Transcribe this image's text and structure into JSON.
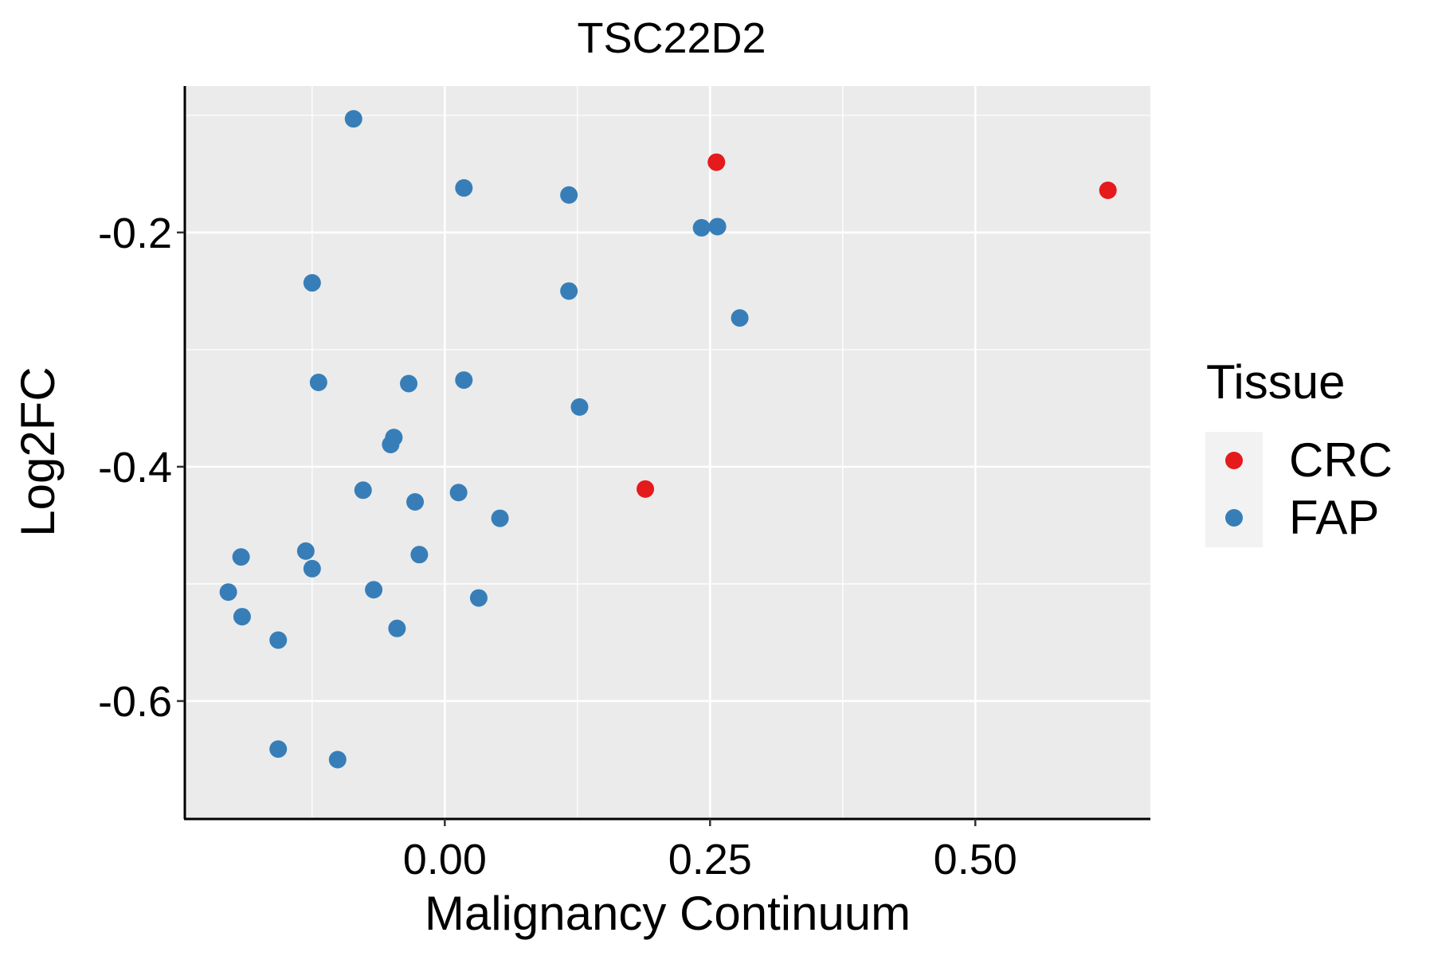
{
  "chart_data": {
    "type": "scatter",
    "title": "TSC22D2",
    "xlabel": "Malignancy Continuum",
    "ylabel": "Log2FC",
    "xlim": [
      -0.245,
      0.665
    ],
    "ylim": [
      -0.7,
      -0.075
    ],
    "x_ticks": [
      0.0,
      0.25,
      0.5
    ],
    "x_tick_labels": [
      "0.00",
      "0.25",
      "0.50"
    ],
    "x_minor_grid": [
      -0.125,
      0.125,
      0.375
    ],
    "y_ticks": [
      -0.2,
      -0.4,
      -0.6
    ],
    "y_tick_labels": [
      "-0.2",
      "-0.4",
      "-0.6"
    ],
    "y_minor_grid": [
      -0.1,
      -0.3,
      -0.5
    ],
    "legend": {
      "title": "Tissue",
      "position": "right",
      "entries": [
        {
          "label": "CRC",
          "color": "#E41A1C"
        },
        {
          "label": "FAP",
          "color": "#377EB8"
        }
      ]
    },
    "colors": {
      "panel_background": "#EBEBEB",
      "grid": "#FFFFFF",
      "axis": "#000000",
      "legend_key_background": "#F2F2F2"
    },
    "series": [
      {
        "name": "CRC",
        "color": "#E41A1C",
        "points": [
          {
            "x": 0.256,
            "y": -0.14
          },
          {
            "x": 0.625,
            "y": -0.164
          },
          {
            "x": 0.189,
            "y": -0.419
          }
        ]
      },
      {
        "name": "FAP",
        "color": "#377EB8",
        "points": [
          {
            "x": -0.086,
            "y": -0.103
          },
          {
            "x": 0.018,
            "y": -0.162
          },
          {
            "x": 0.117,
            "y": -0.168
          },
          {
            "x": 0.242,
            "y": -0.196
          },
          {
            "x": 0.257,
            "y": -0.195
          },
          {
            "x": -0.125,
            "y": -0.243
          },
          {
            "x": 0.117,
            "y": -0.25
          },
          {
            "x": 0.278,
            "y": -0.273
          },
          {
            "x": -0.119,
            "y": -0.328
          },
          {
            "x": -0.034,
            "y": -0.329
          },
          {
            "x": 0.018,
            "y": -0.326
          },
          {
            "x": 0.127,
            "y": -0.349
          },
          {
            "x": -0.048,
            "y": -0.375
          },
          {
            "x": -0.051,
            "y": -0.381
          },
          {
            "x": -0.077,
            "y": -0.42
          },
          {
            "x": 0.013,
            "y": -0.422
          },
          {
            "x": -0.028,
            "y": -0.43
          },
          {
            "x": 0.052,
            "y": -0.444
          },
          {
            "x": -0.192,
            "y": -0.477
          },
          {
            "x": -0.131,
            "y": -0.472
          },
          {
            "x": -0.024,
            "y": -0.475
          },
          {
            "x": -0.125,
            "y": -0.487
          },
          {
            "x": -0.204,
            "y": -0.507
          },
          {
            "x": -0.067,
            "y": -0.505
          },
          {
            "x": 0.032,
            "y": -0.512
          },
          {
            "x": -0.191,
            "y": -0.528
          },
          {
            "x": -0.045,
            "y": -0.538
          },
          {
            "x": -0.157,
            "y": -0.548
          },
          {
            "x": -0.157,
            "y": -0.641
          },
          {
            "x": -0.101,
            "y": -0.65
          }
        ]
      }
    ]
  }
}
